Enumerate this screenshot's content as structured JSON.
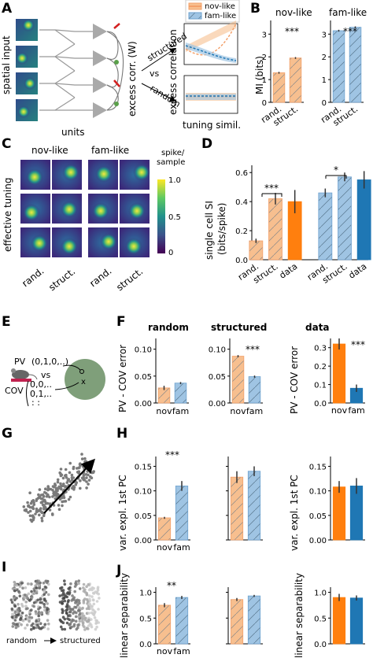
{
  "colors": {
    "nov": "#f7bf8f",
    "nov_edge": "#f3a06a",
    "fam": "#9fc4e3",
    "fam_edge": "#6ea2cf",
    "data_orange": "#ff7f0e",
    "data_blue": "#1f77b4",
    "gray": "#8a8a8a"
  },
  "panels": {
    "A": "A",
    "B": "B",
    "C": "C",
    "D": "D",
    "E": "E",
    "F": "F",
    "G": "G",
    "H": "H",
    "I": "I",
    "J": "J"
  },
  "A": {
    "left_label": "spatial input",
    "bottom_label": "units",
    "axis_label": "excess corr. (W)",
    "vs": "vs",
    "structured": "structured",
    "random": "random",
    "legend_nov": "nov-like",
    "legend_fam": "fam-like",
    "ylabel": "excess correlation",
    "xlabel": "tuning simil."
  },
  "B": {
    "title_nov": "nov-like",
    "title_fam": "fam-like",
    "ylabel": "MI (bits)",
    "yticks": [
      "0",
      "1",
      "2",
      "3"
    ],
    "xticks": [
      "rand.",
      "struct."
    ],
    "stars": "***"
  },
  "C": {
    "title_nov": "nov-like",
    "title_fam": "fam-like",
    "ylabel": "effective tuning",
    "xticks": [
      "rand.",
      "struct.",
      "rand.",
      "struct."
    ],
    "cbar_label": "spike/ sample",
    "cbar_label_1": "spike/",
    "cbar_label_2": "sample",
    "cbar_ticks": [
      "1.0",
      "0.5",
      "0"
    ]
  },
  "D": {
    "ylabel_1": "single cell SI",
    "ylabel_2": "(bits/spike)",
    "yticks": [
      "0.0",
      "0.2",
      "0.4",
      "0.6"
    ],
    "xticks": [
      "rand.",
      "struct.",
      "data",
      "rand.",
      "struct.",
      "data"
    ],
    "stars1": "***",
    "stars2": "*"
  },
  "E": {
    "pv": "PV",
    "pv_vec": "(0,1,0,..)",
    "vs": "vs",
    "cov": "COV",
    "cov_row1": "0,0,..",
    "cov_row2": "0,1,..",
    "cov_row3": ":  :",
    "x": "x"
  },
  "F": {
    "titles": [
      "random",
      "structured",
      "data"
    ],
    "ylabel": "PV - COV error",
    "yticks1": [
      "0.00",
      "0.05",
      "0.10"
    ],
    "yticks3": [
      "0.0",
      "0.1",
      "0.2",
      "0.3"
    ],
    "xticks": [
      "nov",
      "fam"
    ],
    "stars2": "***",
    "stars3": "***"
  },
  "H": {
    "ylabel": "var. expl. 1st PC",
    "yticks": [
      "0.00",
      "0.05",
      "0.10",
      "0.15"
    ],
    "xticks": [
      "nov",
      "fam"
    ],
    "stars": "***"
  },
  "I": {
    "random": "random",
    "structured": "structured"
  },
  "J": {
    "ylabel": "linear separability",
    "yticks": [
      "0.0",
      "0.5",
      "1.0"
    ],
    "xticks": [
      "nov",
      "fam"
    ],
    "stars": "**"
  },
  "chart_data": [
    {
      "type": "line",
      "panel": "A-structured",
      "xlabel": "tuning simil.",
      "ylabel": "excess correlation",
      "series": [
        {
          "name": "nov-like",
          "trend": "increasing"
        },
        {
          "name": "fam-like",
          "trend": "decreasing"
        }
      ]
    },
    {
      "type": "line",
      "panel": "A-random",
      "xlabel": "tuning simil.",
      "ylabel": "excess correlation",
      "series": [
        {
          "name": "nov-like",
          "trend": "flat"
        },
        {
          "name": "fam-like",
          "trend": "flat"
        }
      ]
    },
    {
      "type": "bar",
      "panel": "B-nov-like",
      "title": "nov-like",
      "ylabel": "MI (bits)",
      "categories": [
        "rand.",
        "struct."
      ],
      "values": [
        1.3,
        1.95
      ],
      "ylim": [
        0,
        3.6
      ]
    },
    {
      "type": "bar",
      "panel": "B-fam-like",
      "title": "fam-like",
      "ylabel": "MI (bits)",
      "categories": [
        "rand.",
        "struct."
      ],
      "values": [
        3.15,
        3.3
      ],
      "ylim": [
        0,
        3.6
      ]
    },
    {
      "type": "bar",
      "panel": "D",
      "ylabel": "single cell SI (bits/spike)",
      "categories": [
        "rand.",
        "struct.",
        "data",
        "rand.",
        "struct.",
        "data"
      ],
      "values": [
        0.13,
        0.42,
        0.4,
        0.46,
        0.57,
        0.55
      ],
      "errors": [
        0.015,
        0.04,
        0.08,
        0.03,
        0.03,
        0.06
      ],
      "ylim": [
        0,
        0.65
      ]
    },
    {
      "type": "bar",
      "panel": "F-random",
      "title": "random",
      "ylabel": "PV - COV error",
      "categories": [
        "nov",
        "fam"
      ],
      "values": [
        0.028,
        0.037
      ],
      "ylim": [
        0,
        0.12
      ]
    },
    {
      "type": "bar",
      "panel": "F-structured",
      "title": "structured",
      "categories": [
        "nov",
        "fam"
      ],
      "values": [
        0.087,
        0.049
      ],
      "ylim": [
        0,
        0.12
      ]
    },
    {
      "type": "bar",
      "panel": "F-data",
      "title": "data",
      "ylabel": "PV - COV error",
      "categories": [
        "nov",
        "fam"
      ],
      "values": [
        0.32,
        0.08
      ],
      "ylim": [
        0,
        0.35
      ]
    },
    {
      "type": "bar",
      "panel": "H-random",
      "ylabel": "var. expl. 1st PC",
      "categories": [
        "nov",
        "fam"
      ],
      "values": [
        0.045,
        0.11
      ],
      "ylim": [
        0,
        0.17
      ]
    },
    {
      "type": "bar",
      "panel": "H-structured",
      "categories": [
        "nov",
        "fam"
      ],
      "values": [
        0.128,
        0.14
      ],
      "ylim": [
        0,
        0.17
      ]
    },
    {
      "type": "bar",
      "panel": "H-data",
      "ylabel": "var. expl. 1st PC",
      "categories": [
        "nov",
        "fam"
      ],
      "values": [
        0.108,
        0.11
      ],
      "ylim": [
        0,
        0.17
      ]
    },
    {
      "type": "bar",
      "panel": "J-random",
      "ylabel": "linear separability",
      "categories": [
        "nov",
        "fam"
      ],
      "values": [
        0.75,
        0.9
      ],
      "ylim": [
        0,
        1.1
      ]
    },
    {
      "type": "bar",
      "panel": "J-structured",
      "categories": [
        "nov",
        "fam"
      ],
      "values": [
        0.86,
        0.93
      ],
      "ylim": [
        0,
        1.1
      ]
    },
    {
      "type": "bar",
      "panel": "J-data",
      "ylabel": "linear separability",
      "categories": [
        "nov",
        "fam"
      ],
      "values": [
        0.9,
        0.89
      ],
      "ylim": [
        0,
        1.1
      ]
    }
  ]
}
